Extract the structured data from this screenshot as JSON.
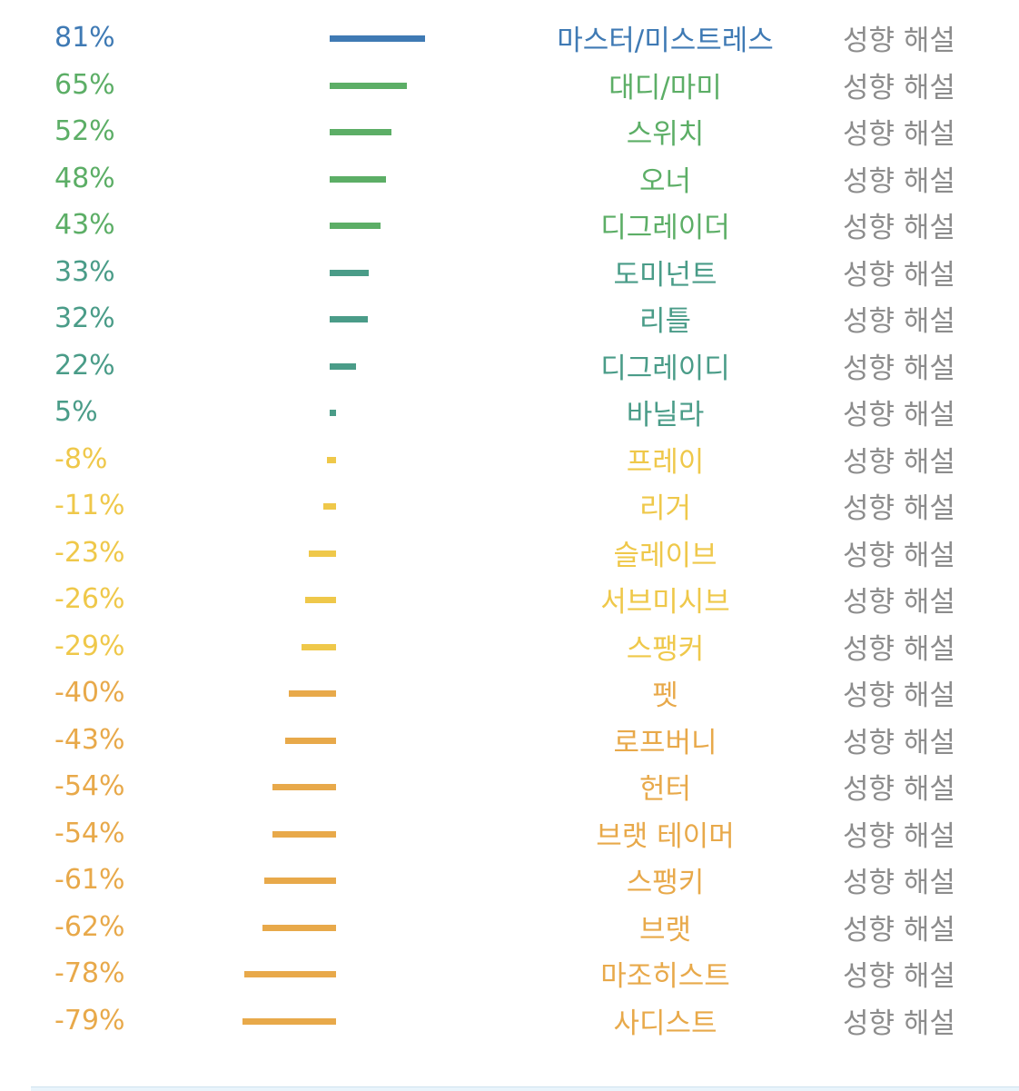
{
  "chart_data": {
    "type": "bar",
    "orientation": "horizontal",
    "xlim": [
      -100,
      100
    ],
    "link_text": "성향 해설",
    "colors": {
      "blue": "#3f7ab4",
      "green": "#5cae66",
      "teal": "#4a9c88",
      "yellow": "#efc84a",
      "orange": "#e8a94a",
      "link": "#8c8c8c"
    },
    "rows": [
      {
        "value": 81,
        "pct": "81%",
        "label": "마스터/미스트레스",
        "color": "blue"
      },
      {
        "value": 65,
        "pct": "65%",
        "label": "대디/마미",
        "color": "green"
      },
      {
        "value": 52,
        "pct": "52%",
        "label": "스위치",
        "color": "green"
      },
      {
        "value": 48,
        "pct": "48%",
        "label": "오너",
        "color": "green"
      },
      {
        "value": 43,
        "pct": "43%",
        "label": "디그레이더",
        "color": "green"
      },
      {
        "value": 33,
        "pct": "33%",
        "label": "도미넌트",
        "color": "teal"
      },
      {
        "value": 32,
        "pct": "32%",
        "label": "리틀",
        "color": "teal"
      },
      {
        "value": 22,
        "pct": "22%",
        "label": "디그레이디",
        "color": "teal"
      },
      {
        "value": 5,
        "pct": "5%",
        "label": "바닐라",
        "color": "teal"
      },
      {
        "value": -8,
        "pct": "-8%",
        "label": "프레이",
        "color": "yellow"
      },
      {
        "value": -11,
        "pct": "-11%",
        "label": "리거",
        "color": "yellow"
      },
      {
        "value": -23,
        "pct": "-23%",
        "label": "슬레이브",
        "color": "yellow"
      },
      {
        "value": -26,
        "pct": "-26%",
        "label": "서브미시브",
        "color": "yellow"
      },
      {
        "value": -29,
        "pct": "-29%",
        "label": "스팽커",
        "color": "yellow"
      },
      {
        "value": -40,
        "pct": "-40%",
        "label": "펫",
        "color": "orange"
      },
      {
        "value": -43,
        "pct": "-43%",
        "label": "로프버니",
        "color": "orange"
      },
      {
        "value": -54,
        "pct": "-54%",
        "label": "헌터",
        "color": "orange"
      },
      {
        "value": -54,
        "pct": "-54%",
        "label": "브랫 테이머",
        "color": "orange"
      },
      {
        "value": -61,
        "pct": "-61%",
        "label": "스팽키",
        "color": "orange"
      },
      {
        "value": -62,
        "pct": "-62%",
        "label": "브랫",
        "color": "orange"
      },
      {
        "value": -78,
        "pct": "-78%",
        "label": "마조히스트",
        "color": "orange"
      },
      {
        "value": -79,
        "pct": "-79%",
        "label": "사디스트",
        "color": "orange"
      }
    ]
  }
}
